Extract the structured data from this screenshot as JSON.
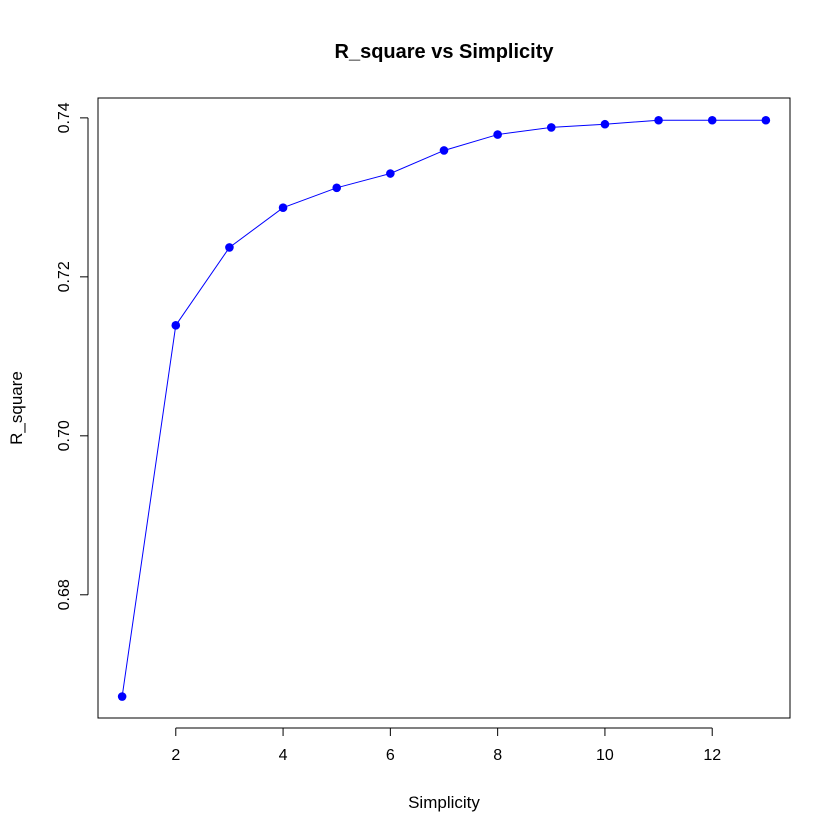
{
  "chart_data": {
    "type": "line",
    "title": "R_square vs Simplicity",
    "xlabel": "Simplicity",
    "ylabel": "R_square",
    "xlim": [
      0.55,
      13.45
    ],
    "ylim": [
      0.6645,
      0.7425
    ],
    "xticks": [
      2,
      4,
      6,
      8,
      10,
      12
    ],
    "xtick_labels": [
      "2",
      "4",
      "6",
      "8",
      "10",
      "12"
    ],
    "yticks": [
      0.68,
      0.7,
      0.72,
      0.74
    ],
    "ytick_labels": [
      "0.68",
      "0.70",
      "0.72",
      "0.74"
    ],
    "grid": false,
    "series": [
      {
        "name": "R_square",
        "color": "#0000ff",
        "marker": "filled-circle",
        "x": [
          1,
          2,
          3,
          4,
          5,
          6,
          7,
          8,
          9,
          10,
          11,
          12,
          13
        ],
        "y": [
          0.6672,
          0.7139,
          0.7237,
          0.7287,
          0.7312,
          0.733,
          0.7359,
          0.7379,
          0.7388,
          0.7392,
          0.7397,
          0.7397,
          0.7397
        ]
      }
    ]
  }
}
